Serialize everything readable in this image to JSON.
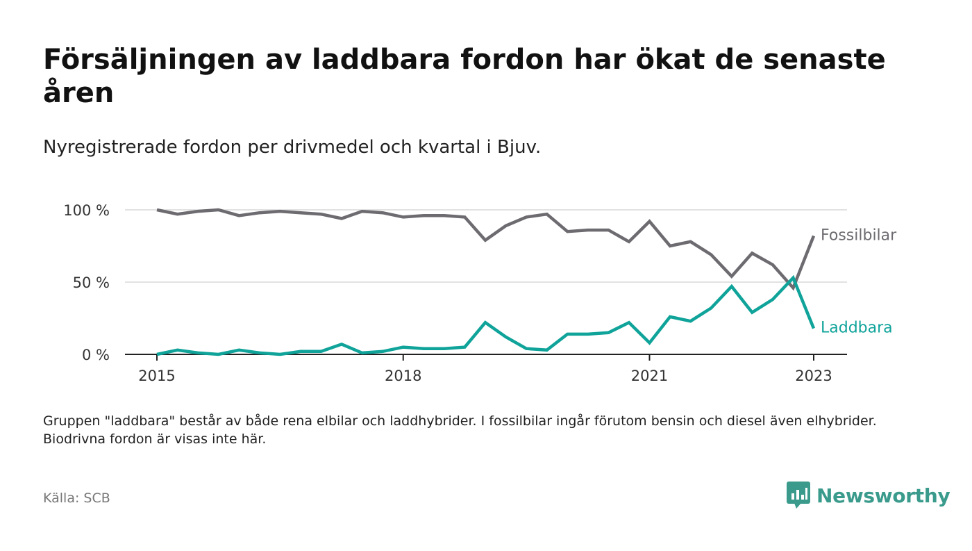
{
  "header": {
    "title": "Försäljningen av laddbara fordon har ökat de senaste åren",
    "subtitle": "Nyregistrerade fordon per drivmedel och kvartal i Bjuv."
  },
  "footer": {
    "note": "Gruppen \"laddbara\" består av både rena elbilar och laddhybrider. I fossilbilar ingår förutom bensin och diesel även elhybrider. Biodrivna fordon är visas inte här.",
    "source": "Källa: SCB",
    "brand": "Newsworthy",
    "brand_icon": "newsworthy-logo-icon"
  },
  "colors": {
    "fossil": "#6d6b70",
    "laddbara": "#0fa39a",
    "grid": "#d9d9d9",
    "axis": "#222222",
    "brand": "#3a9b8c"
  },
  "chart_data": {
    "type": "line",
    "x_unit": "quarter",
    "x": [
      "2015-Q1",
      "2015-Q2",
      "2015-Q3",
      "2015-Q4",
      "2016-Q1",
      "2016-Q2",
      "2016-Q3",
      "2016-Q4",
      "2017-Q1",
      "2017-Q2",
      "2017-Q3",
      "2017-Q4",
      "2018-Q1",
      "2018-Q2",
      "2018-Q3",
      "2018-Q4",
      "2019-Q1",
      "2019-Q2",
      "2019-Q3",
      "2019-Q4",
      "2020-Q1",
      "2020-Q2",
      "2020-Q3",
      "2020-Q4",
      "2021-Q1",
      "2021-Q2",
      "2021-Q3",
      "2021-Q4",
      "2022-Q1",
      "2022-Q2",
      "2022-Q3",
      "2022-Q4",
      "2023-Q1"
    ],
    "x_ticks": [
      "2015",
      "2018",
      "2021",
      "2023"
    ],
    "y_ticks": [
      "0 %",
      "50 %",
      "100 %"
    ],
    "ylim": [
      0,
      100
    ],
    "grid": "horizontal",
    "legend": "direct labels at line ends",
    "series": [
      {
        "name": "Fossilbilar",
        "color": "#6d6b70",
        "values": [
          100,
          97,
          99,
          100,
          96,
          98,
          99,
          98,
          97,
          94,
          99,
          98,
          95,
          96,
          96,
          95,
          79,
          89,
          95,
          97,
          85,
          86,
          86,
          78,
          92,
          75,
          78,
          69,
          54,
          70,
          62,
          46,
          82
        ]
      },
      {
        "name": "Laddbara",
        "color": "#0fa39a",
        "values": [
          0,
          3,
          1,
          0,
          3,
          1,
          0,
          2,
          2,
          7,
          1,
          2,
          5,
          4,
          4,
          5,
          22,
          12,
          4,
          3,
          14,
          14,
          15,
          22,
          8,
          26,
          23,
          32,
          47,
          29,
          38,
          53,
          18
        ]
      }
    ]
  }
}
